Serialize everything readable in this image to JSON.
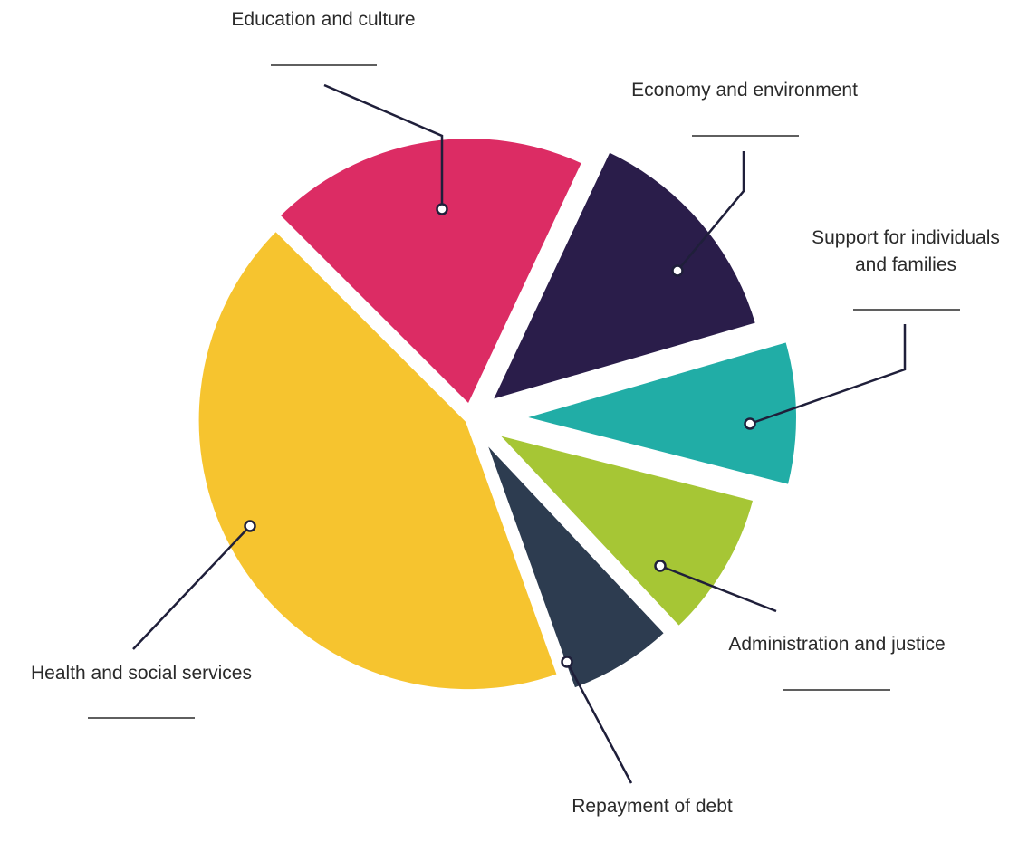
{
  "chart_data": {
    "type": "pie",
    "slices": [
      {
        "label_lines": [
          "Education and culture"
        ],
        "value": 19.5,
        "color": "#DC2C64"
      },
      {
        "label_lines": [
          "Economy and environment"
        ],
        "value": 13.5,
        "color": "#2A1D4A"
      },
      {
        "label_lines": [
          "Support for individuals",
          "and families"
        ],
        "value": 8.5,
        "color": "#21ADA6"
      },
      {
        "label_lines": [
          "Administration and justice"
        ],
        "value": 9.0,
        "color": "#A6C635"
      },
      {
        "label_lines": [
          "Repayment of debt"
        ],
        "value": 6.5,
        "color": "#2D3C50"
      },
      {
        "label_lines": [
          "Health and social services"
        ],
        "value": 43.0,
        "color": "#F6C42F"
      }
    ],
    "legend": "none",
    "grid": false
  }
}
